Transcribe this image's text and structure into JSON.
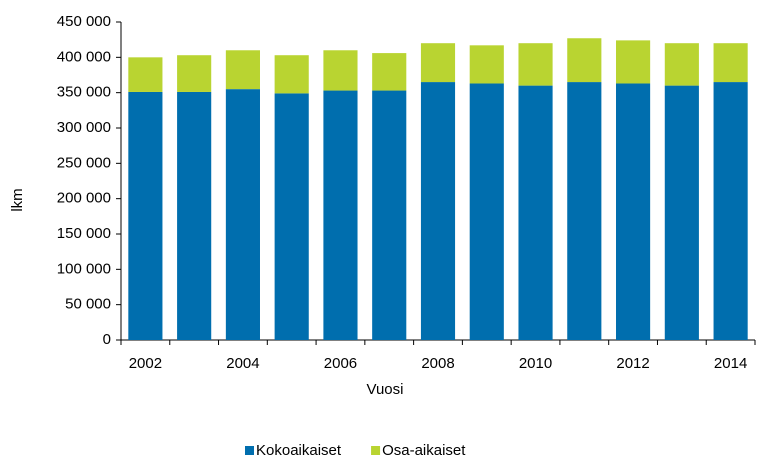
{
  "chart_data": {
    "type": "stacked_bar",
    "categories": [
      "2002",
      null,
      "2004",
      null,
      "2006",
      null,
      "2008",
      null,
      "2010",
      null,
      "2012",
      null,
      "2014"
    ],
    "series": [
      {
        "name": "Kokoaikaiset",
        "color": "#006eae",
        "values": [
          351000,
          351000,
          355000,
          349000,
          353000,
          353000,
          365000,
          363000,
          360000,
          365000,
          363000,
          360000,
          365000
        ]
      },
      {
        "name": "Osa-aikaiset",
        "color": "#b9d431",
        "values": [
          49000,
          52000,
          55000,
          54000,
          57000,
          53000,
          55000,
          54000,
          60000,
          62000,
          61000,
          60000,
          55000
        ]
      }
    ],
    "xlabel": "Vuosi",
    "ylabel": "lkm",
    "ylim": [
      0,
      450000
    ],
    "yticks": [
      0,
      {
        "value": 50000,
        "label": "50 000"
      },
      {
        "value": 100000,
        "label": "100 000"
      },
      {
        "value": 150000,
        "label": "150 000"
      },
      {
        "value": 200000,
        "label": "200 000"
      },
      {
        "value": 250000,
        "label": "250 000"
      },
      {
        "value": 300000,
        "label": "300 000"
      },
      {
        "value": 350000,
        "label": "350 000"
      },
      {
        "value": 400000,
        "label": "400 000"
      },
      {
        "value": 450000,
        "label": "450 000"
      }
    ],
    "grid": false,
    "legend": "bottom"
  }
}
